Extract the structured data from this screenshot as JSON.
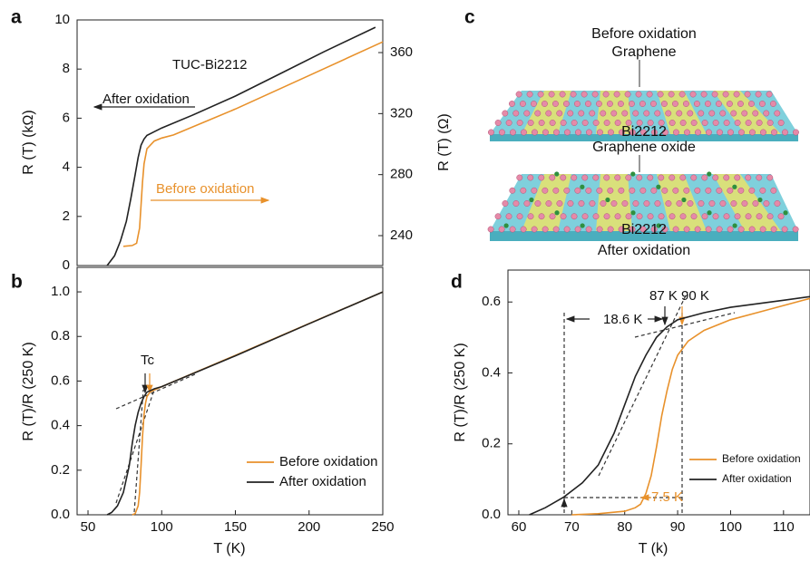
{
  "chart_data": [
    {
      "type": "line",
      "panel_label": "a",
      "ylabel": "R (T) (kΩ)",
      "y2label": "R (T) (Ω)",
      "xlim": [
        42.6,
        250
      ],
      "ylim": [
        0,
        10
      ],
      "yticks": [
        0,
        2,
        4,
        6,
        8,
        10
      ],
      "y2lim": [
        220.4,
        381.4
      ],
      "y2ticks": [
        240,
        280,
        320,
        360
      ],
      "annotations": [
        "TUC-Bi2212",
        "After oxidation",
        "Before oxidation"
      ],
      "series": [
        {
          "color": "#222222",
          "x": [
            63,
            68,
            72,
            76,
            79,
            82,
            84,
            86,
            88,
            90,
            95,
            100,
            120,
            150,
            180,
            210,
            245
          ],
          "values": [
            0,
            0.4,
            1.0,
            1.8,
            2.7,
            3.7,
            4.4,
            4.9,
            5.15,
            5.3,
            5.45,
            5.6,
            6.1,
            6.9,
            7.8,
            8.7,
            9.7
          ]
        },
        {
          "color": "#E8912B",
          "axis": "y2",
          "x": [
            74,
            80,
            83,
            85,
            86,
            87,
            88,
            90,
            95,
            100,
            108,
            150,
            200,
            250
          ],
          "values": [
            233,
            233.5,
            235,
            245,
            260,
            275,
            287,
            297,
            302,
            304,
            306,
            323,
            345,
            367
          ]
        }
      ]
    },
    {
      "type": "line",
      "panel_label": "b",
      "xlabel": "T (K)",
      "ylabel": "R (T)/R (250 K)",
      "xlim": [
        42.6,
        250
      ],
      "xticks": [
        50,
        100,
        150,
        200,
        250
      ],
      "ylim": [
        0,
        1.11
      ],
      "yticks": [
        {
          "value": 0,
          "label": "0.0"
        },
        0.2,
        0.4,
        0.6,
        0.8,
        {
          "value": 1,
          "label": "1.0"
        }
      ],
      "annotations": [
        "Tc"
      ],
      "legend": "lower right",
      "series": [
        {
          "name": "Before oxidation",
          "color": "#E8912B",
          "x": [
            80,
            82,
            84,
            85,
            86,
            87,
            88,
            89,
            90,
            92,
            95,
            100,
            150,
            200,
            250
          ],
          "values": [
            0,
            0.005,
            0.04,
            0.1,
            0.22,
            0.35,
            0.45,
            0.5,
            0.53,
            0.55,
            0.56,
            0.575,
            0.715,
            0.858,
            1.0
          ]
        },
        {
          "name": "After oxidation",
          "color": "#222222",
          "x": [
            63,
            66,
            70,
            74,
            78,
            80,
            82,
            84,
            86,
            88,
            90,
            95,
            100,
            150,
            200,
            250
          ],
          "values": [
            0,
            0.01,
            0.04,
            0.1,
            0.22,
            0.32,
            0.4,
            0.46,
            0.5,
            0.53,
            0.55,
            0.565,
            0.575,
            0.713,
            0.857,
            1.0
          ]
        }
      ]
    },
    {
      "type": "line",
      "panel_label": "d",
      "xlabel": "T (k)",
      "ylabel": "R (T)/R (250 K)",
      "xlim": [
        57.95,
        115
      ],
      "xticks": [
        60,
        70,
        80,
        90,
        100,
        110
      ],
      "ylim": [
        0,
        0.69
      ],
      "yticks": [
        {
          "value": 0,
          "label": "0.0"
        },
        0.2,
        0.4,
        0.6
      ],
      "annotations": [
        "87 K 90 K",
        "18.6 K",
        "7.5 K"
      ],
      "legend": "center right",
      "series": [
        {
          "name": "Before oxidation",
          "color": "#E8912B",
          "x": [
            70,
            75,
            80,
            82,
            83,
            84,
            85,
            86,
            87,
            88,
            89,
            90,
            92,
            95,
            100,
            105,
            110,
            115
          ],
          "values": [
            0,
            0.003,
            0.01,
            0.02,
            0.03,
            0.06,
            0.11,
            0.19,
            0.28,
            0.35,
            0.41,
            0.45,
            0.49,
            0.52,
            0.55,
            0.57,
            0.59,
            0.61
          ]
        },
        {
          "name": "After oxidation",
          "color": "#222222",
          "x": [
            62,
            65,
            68.5,
            72,
            75,
            78,
            80,
            82,
            84,
            86,
            88,
            90,
            95,
            100,
            105,
            110,
            115
          ],
          "values": [
            0,
            0.02,
            0.05,
            0.09,
            0.14,
            0.23,
            0.31,
            0.39,
            0.45,
            0.5,
            0.53,
            0.55,
            0.57,
            0.585,
            0.595,
            0.605,
            0.615
          ]
        }
      ]
    }
  ],
  "illustration": {
    "panel_label": "c",
    "labels": [
      "Before oxidation",
      "Graphene",
      "Bi2212",
      "Graphene oxide",
      "Bi2212",
      "After oxidation"
    ]
  }
}
